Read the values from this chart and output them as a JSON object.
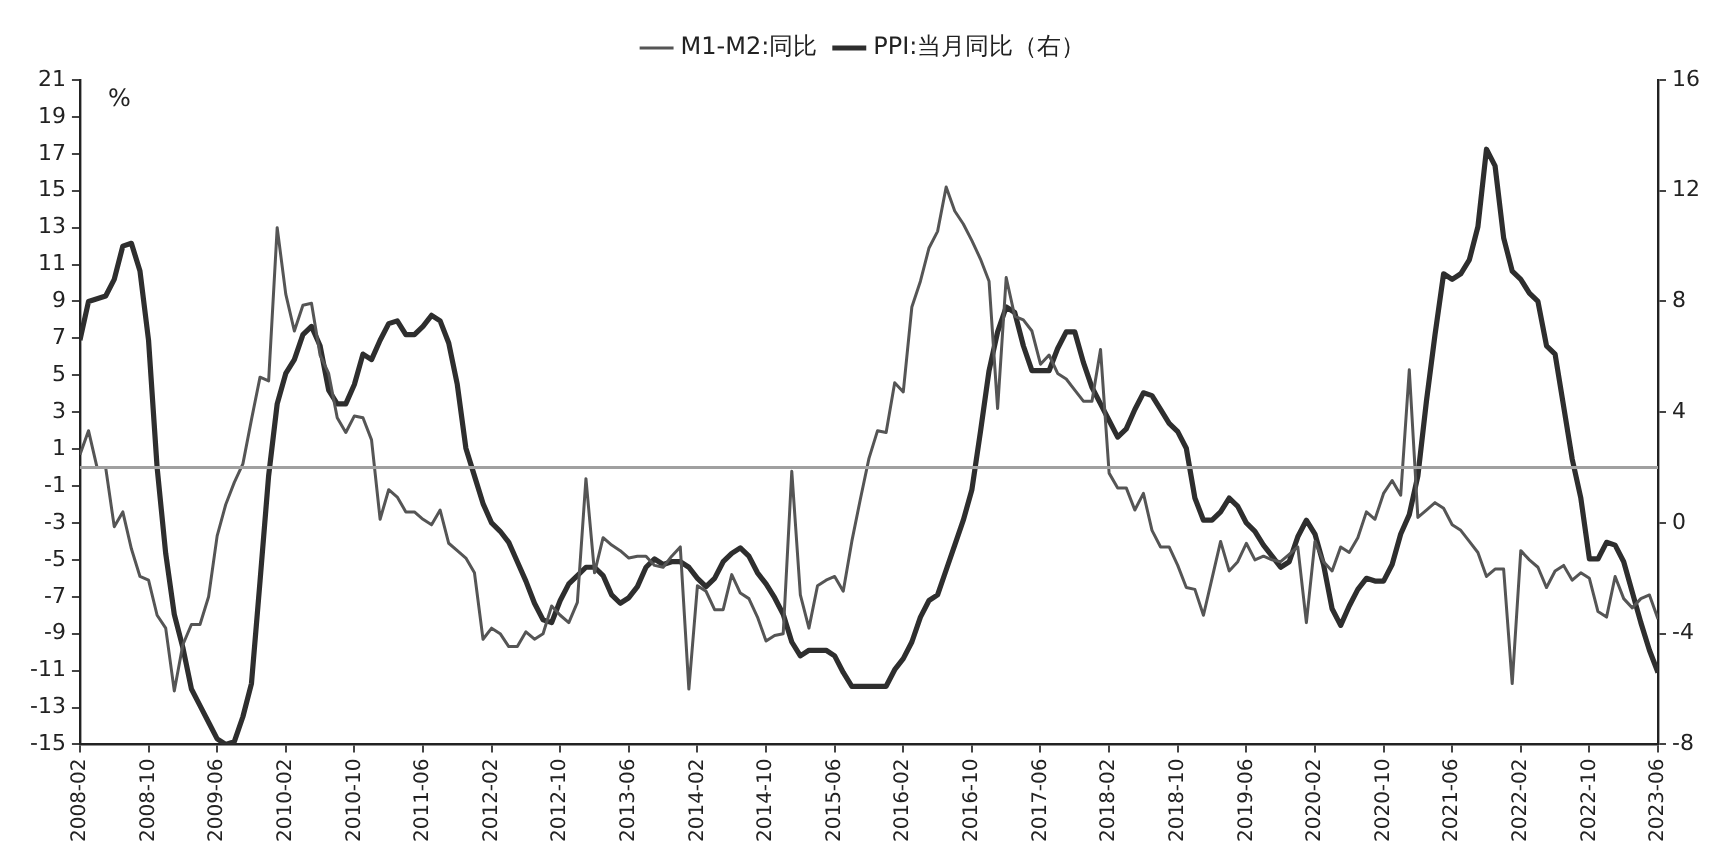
{
  "chart_data": {
    "type": "line",
    "ylabel": "%",
    "legend": "top",
    "line_style": "solid",
    "x": [
      "2008-02",
      "2008-03",
      "2008-04",
      "2008-05",
      "2008-06",
      "2008-07",
      "2008-08",
      "2008-09",
      "2008-10",
      "2008-11",
      "2008-12",
      "2009-01",
      "2009-02",
      "2009-03",
      "2009-04",
      "2009-05",
      "2009-06",
      "2009-07",
      "2009-08",
      "2009-09",
      "2009-10",
      "2009-11",
      "2009-12",
      "2010-01",
      "2010-02",
      "2010-03",
      "2010-04",
      "2010-05",
      "2010-06",
      "2010-07",
      "2010-08",
      "2010-09",
      "2010-10",
      "2010-11",
      "2010-12",
      "2011-01",
      "2011-02",
      "2011-03",
      "2011-04",
      "2011-05",
      "2011-06",
      "2011-07",
      "2011-08",
      "2011-09",
      "2011-10",
      "2011-11",
      "2011-12",
      "2012-01",
      "2012-02",
      "2012-03",
      "2012-04",
      "2012-05",
      "2012-06",
      "2012-07",
      "2012-08",
      "2012-09",
      "2012-10",
      "2012-11",
      "2012-12",
      "2013-01",
      "2013-02",
      "2013-03",
      "2013-04",
      "2013-05",
      "2013-06",
      "2013-07",
      "2013-08",
      "2013-09",
      "2013-10",
      "2013-11",
      "2013-12",
      "2014-01",
      "2014-02",
      "2014-03",
      "2014-04",
      "2014-05",
      "2014-06",
      "2014-07",
      "2014-08",
      "2014-09",
      "2014-10",
      "2014-11",
      "2014-12",
      "2015-01",
      "2015-02",
      "2015-03",
      "2015-04",
      "2015-05",
      "2015-06",
      "2015-07",
      "2015-08",
      "2015-09",
      "2015-10",
      "2015-11",
      "2015-12",
      "2016-01",
      "2016-02",
      "2016-03",
      "2016-04",
      "2016-05",
      "2016-06",
      "2016-07",
      "2016-08",
      "2016-09",
      "2016-10",
      "2016-11",
      "2016-12",
      "2017-01",
      "2017-02",
      "2017-03",
      "2017-04",
      "2017-05",
      "2017-06",
      "2017-07",
      "2017-08",
      "2017-09",
      "2017-10",
      "2017-11",
      "2017-12",
      "2018-01",
      "2018-02",
      "2018-03",
      "2018-04",
      "2018-05",
      "2018-06",
      "2018-07",
      "2018-08",
      "2018-09",
      "2018-10",
      "2018-11",
      "2018-12",
      "2019-01",
      "2019-02",
      "2019-03",
      "2019-04",
      "2019-05",
      "2019-06",
      "2019-07",
      "2019-08",
      "2019-09",
      "2019-10",
      "2019-11",
      "2019-12",
      "2020-01",
      "2020-02",
      "2020-03",
      "2020-04",
      "2020-05",
      "2020-06",
      "2020-07",
      "2020-08",
      "2020-09",
      "2020-10",
      "2020-11",
      "2020-12",
      "2021-01",
      "2021-02",
      "2021-03",
      "2021-04",
      "2021-05",
      "2021-06",
      "2021-07",
      "2021-08",
      "2021-09",
      "2021-10",
      "2021-11",
      "2021-12",
      "2022-01",
      "2022-02",
      "2022-03",
      "2022-04",
      "2022-05",
      "2022-06",
      "2022-07",
      "2022-08",
      "2022-09",
      "2022-10",
      "2022-11",
      "2022-12",
      "2023-01",
      "2023-02",
      "2023-03",
      "2023-04",
      "2023-05",
      "2023-06"
    ],
    "xlim": [
      "2008-02",
      "2023-06"
    ],
    "xticks": [
      "2008-02",
      "2008-10",
      "2009-06",
      "2010-02",
      "2010-10",
      "2011-06",
      "2012-02",
      "2012-10",
      "2013-06",
      "2014-02",
      "2014-10",
      "2015-06",
      "2016-02",
      "2016-10",
      "2017-06",
      "2018-02",
      "2018-10",
      "2019-06",
      "2020-02",
      "2020-10",
      "2021-06",
      "2022-02",
      "2022-10",
      "2023-06"
    ],
    "ylim": [
      -15,
      21
    ],
    "yticks": [
      -15,
      -13,
      -11,
      -9,
      -7,
      -5,
      -3,
      -1,
      1,
      3,
      5,
      7,
      9,
      11,
      13,
      15,
      17,
      19,
      21
    ],
    "y2lim": [
      -8,
      16
    ],
    "y2ticks": [
      -8,
      -4,
      0,
      4,
      8,
      12,
      16
    ],
    "ref_lines": [
      {
        "axis": "y",
        "value": 0,
        "color": "#a0a0a0"
      }
    ],
    "series": [
      {
        "name": "M1-M2:同比",
        "color": "#555555",
        "values": [
          0.7,
          2.0,
          0,
          0,
          -3.2,
          -2.4,
          -4.4,
          -5.9,
          -6.1,
          -8.0,
          -8.7,
          -12.1,
          -9.6,
          -8.5,
          -8.5,
          -7.0,
          -3.7,
          -2.0,
          -0.8,
          0.2,
          2.6,
          4.9,
          4.7,
          13.0,
          9.4,
          7.4,
          8.8,
          8.9,
          6.1,
          5.1,
          2.7,
          1.9,
          2.8,
          2.7,
          1.5,
          -2.8,
          -1.2,
          -1.6,
          -2.4,
          -2.4,
          -2.8,
          -3.1,
          -2.3,
          -4.1,
          -4.5,
          -4.9,
          -5.7,
          -9.3,
          -8.7,
          -9.0,
          -9.7,
          -9.7,
          -8.9,
          -9.3,
          -9.0,
          -7.5,
          -8.0,
          -8.4,
          -7.3,
          -0.6,
          -5.7,
          -3.8,
          -4.2,
          -4.5,
          -4.9,
          -4.8,
          -4.8,
          -5.3,
          -5.4,
          -4.8,
          -4.3,
          -12.0,
          -6.4,
          -6.7,
          -7.7,
          -7.7,
          -5.8,
          -6.8,
          -7.1,
          -8.1,
          -9.4,
          -9.1,
          -9.0,
          -0.2,
          -6.9,
          -8.7,
          -6.4,
          -6.1,
          -5.9,
          -6.7,
          -4.0,
          -1.7,
          0.5,
          2.0,
          1.9,
          4.6,
          4.1,
          8.7,
          10.1,
          11.9,
          12.8,
          15.2,
          13.9,
          13.2,
          12.3,
          11.3,
          10.1,
          3.2,
          10.3,
          8.2,
          8.0,
          7.4,
          5.6,
          6.1,
          5.1,
          4.8,
          4.2,
          3.6,
          3.6,
          6.4,
          -0.3,
          -1.1,
          -1.1,
          -2.3,
          -1.4,
          -3.4,
          -4.3,
          -4.3,
          -5.3,
          -6.5,
          -6.6,
          -8.0,
          -6.0,
          -4.0,
          -5.6,
          -5.1,
          -4.1,
          -5.0,
          -4.8,
          -5.0,
          -5.1,
          -4.7,
          -4.3,
          -8.4,
          -4.0,
          -5.1,
          -5.6,
          -4.3,
          -4.6,
          -3.8,
          -2.4,
          -2.8,
          -1.4,
          -0.7,
          -1.5,
          5.3,
          -2.7,
          -2.3,
          -1.9,
          -2.2,
          -3.1,
          -3.4,
          -4.0,
          -4.6,
          -5.9,
          -5.5,
          -5.5,
          -11.7,
          -4.5,
          -5.0,
          -5.4,
          -6.5,
          -5.6,
          -5.3,
          -6.1,
          -5.7,
          -6.0,
          -7.8,
          -8.1,
          -5.9,
          -7.1,
          -7.6,
          -7.1,
          -6.9,
          -8.2
        ]
      },
      {
        "name": "PPI:当月同比（右）",
        "color": "#2e2e2e",
        "axis": "y2",
        "values": [
          6.6,
          8.0,
          8.1,
          8.2,
          8.8,
          10.0,
          10.1,
          9.1,
          6.6,
          2.0,
          -1.1,
          -3.3,
          -4.5,
          -6.0,
          -6.6,
          -7.2,
          -7.8,
          -8.0,
          -7.9,
          -7.0,
          -5.8,
          -2.1,
          1.7,
          4.3,
          5.4,
          5.9,
          6.8,
          7.1,
          6.4,
          4.8,
          4.3,
          4.3,
          5.0,
          6.1,
          5.9,
          6.6,
          7.2,
          7.3,
          6.8,
          6.8,
          7.1,
          7.5,
          7.3,
          6.5,
          5.0,
          2.7,
          1.7,
          0.7,
          0.0,
          -0.3,
          -0.7,
          -1.4,
          -2.1,
          -2.9,
          -3.5,
          -3.6,
          -2.8,
          -2.2,
          -1.9,
          -1.6,
          -1.6,
          -1.9,
          -2.6,
          -2.9,
          -2.7,
          -2.3,
          -1.6,
          -1.3,
          -1.5,
          -1.4,
          -1.4,
          -1.6,
          -2.0,
          -2.3,
          -2.0,
          -1.4,
          -1.1,
          -0.9,
          -1.2,
          -1.8,
          -2.2,
          -2.7,
          -3.3,
          -4.3,
          -4.8,
          -4.6,
          -4.6,
          -4.6,
          -4.8,
          -5.4,
          -5.9,
          -5.9,
          -5.9,
          -5.9,
          -5.9,
          -5.3,
          -4.9,
          -4.3,
          -3.4,
          -2.8,
          -2.6,
          -1.7,
          -0.8,
          0.1,
          1.2,
          3.3,
          5.5,
          6.9,
          7.8,
          7.6,
          6.4,
          5.5,
          5.5,
          5.5,
          6.3,
          6.9,
          6.9,
          5.8,
          4.9,
          4.3,
          3.7,
          3.1,
          3.4,
          4.1,
          4.7,
          4.6,
          4.1,
          3.6,
          3.3,
          2.7,
          0.9,
          0.1,
          0.1,
          0.4,
          0.9,
          0.6,
          0.0,
          -0.3,
          -0.8,
          -1.2,
          -1.6,
          -1.4,
          -0.5,
          0.1,
          -0.4,
          -1.5,
          -3.1,
          -3.7,
          -3.0,
          -2.4,
          -2.0,
          -2.1,
          -2.1,
          -1.5,
          -0.4,
          0.3,
          1.7,
          4.4,
          6.8,
          9.0,
          8.8,
          9.0,
          9.5,
          10.7,
          13.5,
          12.9,
          10.3,
          9.1,
          8.8,
          8.3,
          8.0,
          6.4,
          6.1,
          4.2,
          2.3,
          0.9,
          -1.3,
          -1.3,
          -0.7,
          -0.8,
          -1.4,
          -2.5,
          -3.6,
          -4.6,
          -5.4
        ]
      }
    ]
  }
}
